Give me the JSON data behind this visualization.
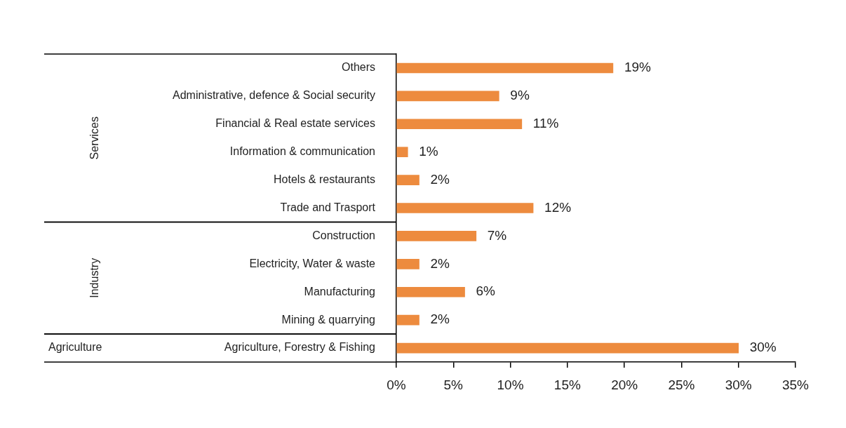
{
  "chart_data": {
    "type": "bar",
    "orientation": "horizontal",
    "categories": [
      "Others",
      "Administrative, defence & Social security",
      "Financial & Real estate services",
      "Information & communication",
      "Hotels & restaurants",
      "Trade and Trasport",
      "Construction",
      "Electricity, Water & waste",
      "Manufacturing",
      "Mining & quarrying",
      "Agriculture, Forestry & Fishing"
    ],
    "values": [
      19,
      9,
      11,
      1,
      2,
      12,
      7,
      2,
      6,
      2,
      30
    ],
    "value_labels": [
      "19%",
      "9%",
      "11%",
      "1%",
      "2%",
      "12%",
      "7%",
      "2%",
      "6%",
      "2%",
      "30%"
    ],
    "color": "#ed8b3e",
    "xlim": [
      0,
      35
    ],
    "xticks": [
      {
        "value": 0,
        "label": "0%"
      },
      {
        "value": 5,
        "label": "5%"
      },
      {
        "value": 10,
        "label": "10%"
      },
      {
        "value": 15,
        "label": "15%"
      },
      {
        "value": 20,
        "label": "20%"
      },
      {
        "value": 25,
        "label": "25%"
      },
      {
        "value": 30,
        "label": "30%"
      },
      {
        "value": 35,
        "label": "35%"
      }
    ],
    "annotations": [
      "Services",
      "Industry",
      "Agriculture"
    ],
    "grid": false,
    "legend": false
  }
}
